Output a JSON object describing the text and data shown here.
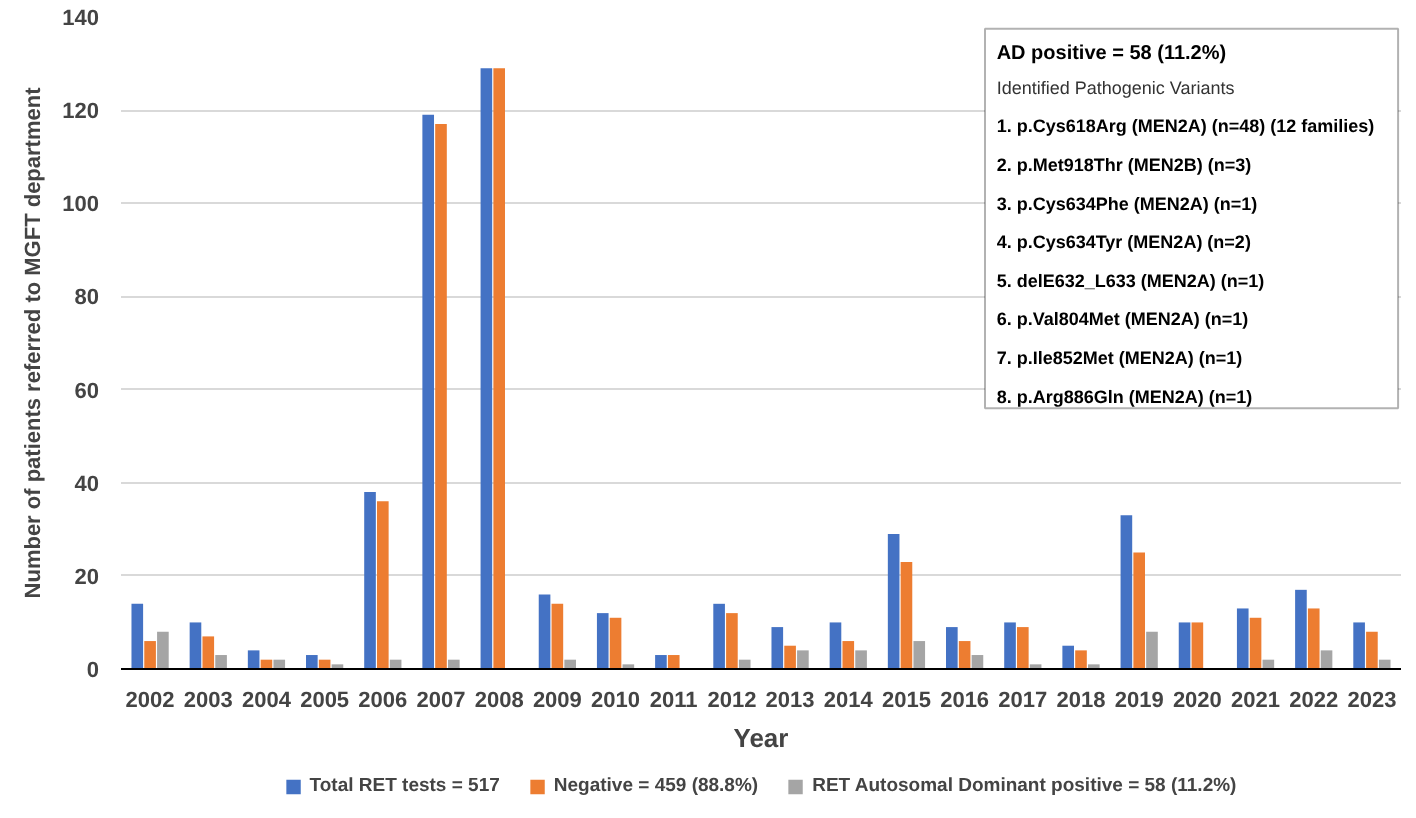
{
  "chart_data": {
    "type": "bar",
    "xlabel": "Year",
    "ylabel": "Number of patients referred to MGFT department",
    "categories": [
      "2002",
      "2003",
      "2004",
      "2005",
      "2006",
      "2007",
      "2008",
      "2009",
      "2010",
      "2011",
      "2012",
      "2013",
      "2014",
      "2015",
      "2016",
      "2017",
      "2018",
      "2019",
      "2020",
      "2021",
      "2022",
      "2023"
    ],
    "series": [
      {
        "name": "Total RET tests = 517",
        "color": "#4472c4",
        "values": [
          14,
          10,
          4,
          3,
          38,
          119,
          129,
          16,
          12,
          3,
          14,
          9,
          10,
          29,
          9,
          10,
          5,
          33,
          10,
          13,
          17,
          10
        ]
      },
      {
        "name": "Negative = 459 (88.8%)",
        "color": "#ed7d31",
        "values": [
          6,
          7,
          2,
          2,
          36,
          117,
          129,
          14,
          11,
          3,
          12,
          5,
          6,
          23,
          6,
          9,
          4,
          25,
          10,
          11,
          13,
          8
        ]
      },
      {
        "name": "RET Autosomal Dominant positive = 58 (11.2%)",
        "color": "#a5a5a5",
        "values": [
          8,
          3,
          2,
          1,
          2,
          2,
          0,
          2,
          1,
          0,
          2,
          4,
          4,
          6,
          3,
          1,
          1,
          8,
          0,
          2,
          4,
          2
        ]
      }
    ],
    "ylim": [
      0,
      140
    ],
    "yticks": [
      0,
      20,
      40,
      60,
      80,
      100,
      120,
      140
    ],
    "grid": "y",
    "legend": "bottom",
    "annotations": [
      "AD positive = 58 (11.2%)",
      "Identified Pathogenic Variants",
      "1. p.Cys618Arg (MEN2A) (n=48) (12 families)",
      "2. p.Met918Thr (MEN2B) (n=3)",
      "3. p.Cys634Phe (MEN2A) (n=1)",
      "4. p.Cys634Tyr (MEN2A) (n=2)",
      "5. delE632_L633 (MEN2A) (n=1)",
      "6. p.Val804Met (MEN2A) (n=1)",
      "7. p.Ile852Met (MEN2A) (n=1)",
      "8. p.Arg886Gln (MEN2A) (n=1)"
    ]
  }
}
